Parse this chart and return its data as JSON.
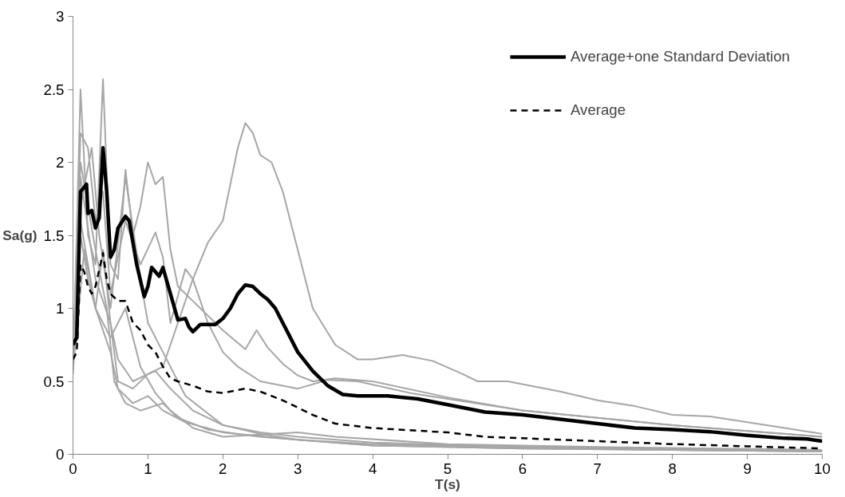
{
  "chart_data": {
    "type": "line",
    "xlabel": "T(s)",
    "ylabel": "Sa(g)",
    "xlim": [
      0,
      10
    ],
    "ylim": [
      0,
      3
    ],
    "xticks": [
      0,
      1,
      2,
      3,
      4,
      5,
      6,
      7,
      8,
      9,
      10
    ],
    "yticks": [
      0,
      0.5,
      1,
      1.5,
      2,
      2.5,
      3
    ],
    "grid": false,
    "legend": "top right",
    "series": [
      {
        "color": "#a6a6a6",
        "x": [
          0,
          0.1,
          0.2,
          0.3,
          0.4,
          0.5,
          0.6,
          0.8,
          1.0,
          1.2,
          1.4,
          1.6,
          1.8,
          2.0,
          2.2,
          2.3,
          2.4,
          2.5,
          2.65,
          2.8,
          3.0,
          3.2,
          3.5,
          3.8,
          4.0,
          4.4,
          4.8,
          5.2,
          5.4,
          5.8,
          6.5,
          7.0,
          7.5,
          8.0,
          8.5,
          9.0,
          9.5,
          10
        ],
        "values": [
          0.6,
          1.5,
          1.2,
          1.0,
          1.4,
          0.9,
          0.65,
          0.5,
          0.55,
          0.6,
          0.9,
          1.2,
          1.45,
          1.6,
          2.1,
          2.27,
          2.2,
          2.05,
          2.0,
          1.8,
          1.4,
          1.0,
          0.75,
          0.65,
          0.65,
          0.68,
          0.64,
          0.55,
          0.5,
          0.5,
          0.43,
          0.37,
          0.33,
          0.27,
          0.26,
          0.22,
          0.18,
          0.14
        ]
      },
      {
        "color": "#a6a6a6",
        "x": [
          0,
          0.1,
          0.2,
          0.3,
          0.4,
          0.5,
          0.6,
          0.7,
          0.8,
          0.9,
          1.0,
          1.1,
          1.2,
          1.3,
          1.4,
          1.6,
          1.8,
          2.0,
          2.3,
          2.45,
          2.6,
          2.8,
          3.0,
          3.2,
          3.5,
          4.0,
          5.0,
          6.0,
          7.0,
          8.0,
          9.0,
          10
        ],
        "values": [
          0.55,
          2.5,
          1.5,
          1.3,
          2.57,
          1.3,
          1.2,
          1.95,
          1.5,
          1.7,
          2.0,
          1.85,
          1.9,
          1.4,
          1.15,
          1.05,
          0.95,
          0.85,
          0.72,
          0.85,
          0.73,
          0.62,
          0.54,
          0.5,
          0.52,
          0.5,
          0.39,
          0.3,
          0.25,
          0.2,
          0.16,
          0.12
        ]
      },
      {
        "color": "#a6a6a6",
        "x": [
          0,
          0.1,
          0.2,
          0.3,
          0.4,
          0.5,
          0.7,
          0.9,
          1.1,
          1.2,
          1.3,
          1.5,
          1.6,
          1.8,
          2.0,
          2.2,
          2.5,
          3.0,
          3.4,
          3.8,
          4.5,
          5.0,
          6.0,
          7.0,
          8.0,
          9.0,
          10
        ],
        "values": [
          0.6,
          2.2,
          2.1,
          1.6,
          1.8,
          1.1,
          1.6,
          1.3,
          1.52,
          1.35,
          0.9,
          1.27,
          1.2,
          0.9,
          0.7,
          0.6,
          0.5,
          0.45,
          0.51,
          0.5,
          0.42,
          0.38,
          0.3,
          0.25,
          0.2,
          0.16,
          0.12
        ]
      },
      {
        "color": "#a6a6a6",
        "x": [
          0,
          0.1,
          0.3,
          0.5,
          0.6,
          0.8,
          1.0,
          1.1,
          1.3,
          1.6,
          2.0,
          2.5,
          3.0,
          4.0,
          6.0,
          8.0,
          10
        ],
        "values": [
          0.7,
          1.9,
          1.2,
          0.9,
          0.5,
          0.45,
          0.55,
          0.57,
          0.45,
          0.3,
          0.2,
          0.15,
          0.12,
          0.08,
          0.05,
          0.03,
          0.02
        ]
      },
      {
        "color": "#a6a6a6",
        "x": [
          0,
          0.1,
          0.3,
          0.5,
          0.6,
          0.8,
          1.0,
          1.2,
          1.5,
          2.0,
          2.5,
          3.0,
          4.0,
          6.0,
          10
        ],
        "values": [
          0.6,
          1.6,
          1.0,
          0.7,
          0.45,
          0.35,
          0.4,
          0.3,
          0.22,
          0.15,
          0.12,
          0.1,
          0.06,
          0.04,
          0.02
        ]
      },
      {
        "color": "#a6a6a6",
        "x": [
          0,
          0.1,
          0.3,
          0.45,
          0.55,
          0.7,
          0.9,
          1.2,
          1.4,
          1.8,
          2.2,
          3.0,
          4.0,
          6.0,
          10
        ],
        "values": [
          0.65,
          2.0,
          1.4,
          1.0,
          0.5,
          0.35,
          0.3,
          0.35,
          0.25,
          0.17,
          0.14,
          0.1,
          0.06,
          0.04,
          0.02
        ]
      },
      {
        "color": "#a6a6a6",
        "x": [
          0,
          0.15,
          0.3,
          0.5,
          0.7,
          0.9,
          1.1,
          1.3,
          1.6,
          2.0,
          3.0,
          3.5,
          5.0,
          7.0,
          10
        ],
        "values": [
          0.58,
          1.4,
          1.0,
          0.8,
          1.0,
          0.6,
          0.42,
          0.3,
          0.18,
          0.12,
          0.15,
          0.12,
          0.07,
          0.05,
          0.03
        ]
      },
      {
        "color": "#a6a6a6",
        "x": [
          0,
          0.1,
          0.25,
          0.35,
          0.5,
          0.7,
          0.9,
          1.0,
          1.2,
          1.5,
          2.0,
          2.5,
          3.0,
          4.0,
          6.0,
          10
        ],
        "values": [
          0.62,
          1.7,
          2.1,
          1.5,
          1.0,
          1.9,
          1.2,
          0.9,
          0.7,
          0.4,
          0.2,
          0.14,
          0.1,
          0.07,
          0.05,
          0.03
        ]
      },
      {
        "name": "Average+one Standard Deviation",
        "color": "#000000",
        "line_style": "solid",
        "x": [
          0,
          0.05,
          0.1,
          0.15,
          0.18,
          0.2,
          0.25,
          0.3,
          0.35,
          0.4,
          0.45,
          0.5,
          0.55,
          0.6,
          0.7,
          0.75,
          0.85,
          0.95,
          1.0,
          1.05,
          1.1,
          1.15,
          1.2,
          1.3,
          1.4,
          1.5,
          1.55,
          1.6,
          1.7,
          1.9,
          2.0,
          2.1,
          2.2,
          2.3,
          2.4,
          2.5,
          2.6,
          2.7,
          2.8,
          3.0,
          3.2,
          3.4,
          3.6,
          3.8,
          4.2,
          4.6,
          5.0,
          5.5,
          6.0,
          6.5,
          7.0,
          7.5,
          8.0,
          8.5,
          9.0,
          9.5,
          9.8,
          10
        ],
        "values": [
          0.75,
          0.8,
          1.8,
          1.83,
          1.85,
          1.65,
          1.67,
          1.55,
          1.62,
          2.1,
          1.8,
          1.35,
          1.4,
          1.55,
          1.63,
          1.6,
          1.3,
          1.08,
          1.15,
          1.28,
          1.25,
          1.22,
          1.28,
          1.1,
          0.92,
          0.93,
          0.87,
          0.84,
          0.89,
          0.89,
          0.93,
          1.0,
          1.1,
          1.16,
          1.15,
          1.1,
          1.06,
          1.0,
          0.9,
          0.7,
          0.57,
          0.47,
          0.41,
          0.4,
          0.4,
          0.38,
          0.34,
          0.29,
          0.27,
          0.24,
          0.21,
          0.18,
          0.17,
          0.155,
          0.13,
          0.11,
          0.105,
          0.09
        ]
      },
      {
        "name": "Average",
        "color": "#000000",
        "line_style": "dashed",
        "x": [
          0,
          0.05,
          0.1,
          0.15,
          0.2,
          0.25,
          0.3,
          0.4,
          0.45,
          0.5,
          0.6,
          0.7,
          0.8,
          0.9,
          1.0,
          1.1,
          1.2,
          1.3,
          1.4,
          1.6,
          1.8,
          2.0,
          2.2,
          2.3,
          2.5,
          2.8,
          3.0,
          3.2,
          3.5,
          4.0,
          5.0,
          5.5,
          6.0,
          7.0,
          8.0,
          9.0,
          10
        ],
        "values": [
          0.65,
          0.7,
          1.3,
          1.25,
          1.15,
          1.1,
          1.15,
          1.38,
          1.2,
          1.1,
          1.05,
          1.05,
          0.9,
          0.85,
          0.75,
          0.7,
          0.6,
          0.52,
          0.5,
          0.47,
          0.43,
          0.42,
          0.44,
          0.45,
          0.43,
          0.37,
          0.32,
          0.27,
          0.21,
          0.18,
          0.15,
          0.12,
          0.11,
          0.09,
          0.07,
          0.055,
          0.04
        ]
      }
    ]
  }
}
